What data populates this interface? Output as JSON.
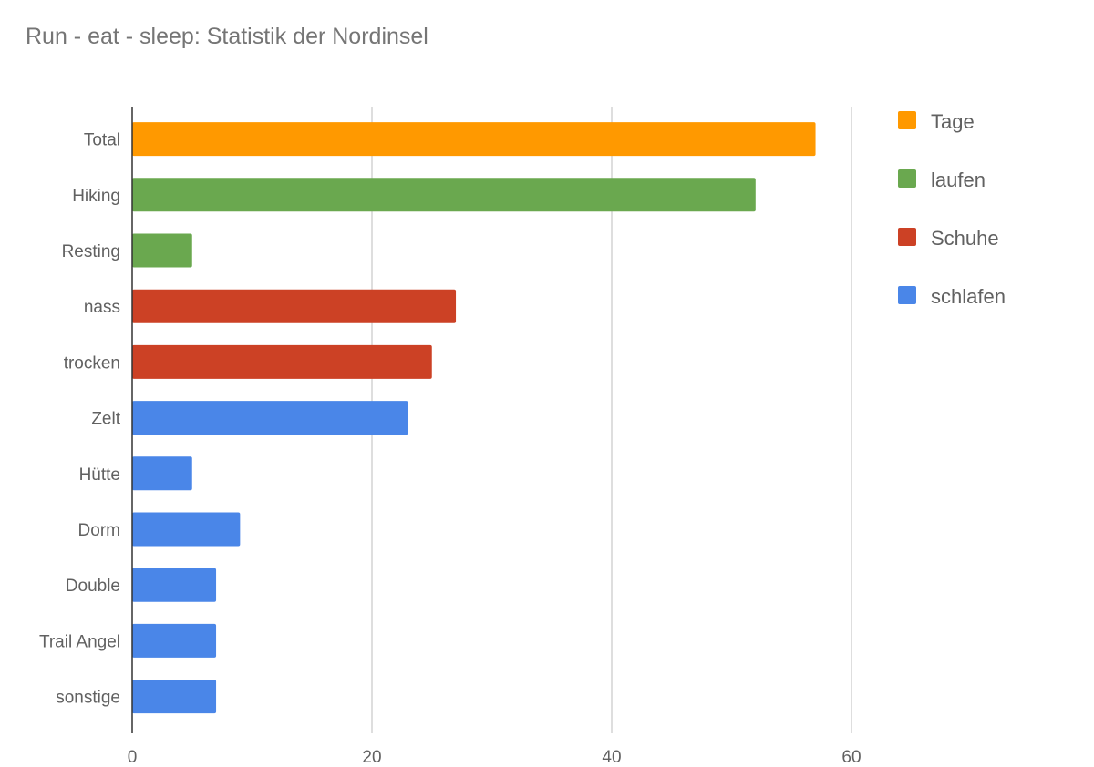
{
  "chart_data": {
    "type": "bar",
    "orientation": "horizontal",
    "title": "Run - eat - sleep: Statistik der Nordinsel",
    "xlabel": "",
    "ylabel": "",
    "xlim": [
      0,
      60
    ],
    "xticks": [
      0,
      20,
      40,
      60
    ],
    "grid": true,
    "legend_position": "right",
    "categories": [
      "Total",
      "Hiking",
      "Resting",
      "nass",
      "trocken",
      "Zelt",
      "Hütte",
      "Dorm",
      "Double",
      "Trail Angel",
      "sonstige"
    ],
    "values": [
      57,
      52,
      5,
      27,
      25,
      23,
      5,
      9,
      7,
      7,
      7
    ],
    "bar_series": [
      "Tage",
      "laufen",
      "laufen",
      "Schuhe",
      "Schuhe",
      "schlafen",
      "schlafen",
      "schlafen",
      "schlafen",
      "schlafen",
      "schlafen"
    ],
    "series": [
      {
        "name": "Tage",
        "color": "#ff9900"
      },
      {
        "name": "laufen",
        "color": "#6aa84f"
      },
      {
        "name": "Schuhe",
        "color": "#cc4125"
      },
      {
        "name": "schlafen",
        "color": "#4a86e8"
      }
    ]
  }
}
